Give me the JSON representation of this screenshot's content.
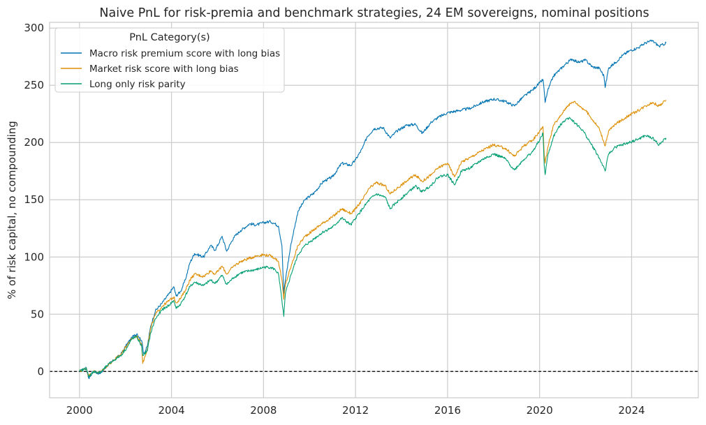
{
  "chart_data": {
    "type": "line",
    "title": "Naive PnL for risk-premia and benchmark strategies, 24 EM sovereigns, nominal positions",
    "xlabel": "",
    "ylabel": "% of risk capital, no compounding",
    "xlim": [
      1998.7,
      2026.9
    ],
    "ylim": [
      -23,
      305
    ],
    "x_ticks": [
      2000,
      2004,
      2008,
      2012,
      2016,
      2020,
      2024
    ],
    "y_ticks": [
      0,
      50,
      100,
      150,
      200,
      250,
      300
    ],
    "grid": true,
    "reference_line": {
      "y": 0,
      "style": "dashed",
      "color": "#000000"
    },
    "legend": {
      "title": "PnL Category(s)",
      "placement": "top-left"
    },
    "series": [
      {
        "name": "Macro risk premium score with long bias",
        "color": "#0173b2",
        "points": [
          [
            2000.0,
            0
          ],
          [
            2000.3,
            3
          ],
          [
            2000.4,
            -6
          ],
          [
            2000.6,
            0
          ],
          [
            2000.9,
            -2
          ],
          [
            2001.2,
            5
          ],
          [
            2001.5,
            10
          ],
          [
            2001.8,
            15
          ],
          [
            2002.1,
            25
          ],
          [
            2002.3,
            30
          ],
          [
            2002.5,
            33
          ],
          [
            2002.7,
            27
          ],
          [
            2002.8,
            15
          ],
          [
            2002.95,
            22
          ],
          [
            2003.1,
            40
          ],
          [
            2003.3,
            53
          ],
          [
            2003.6,
            60
          ],
          [
            2003.9,
            68
          ],
          [
            2004.1,
            74
          ],
          [
            2004.2,
            66
          ],
          [
            2004.4,
            70
          ],
          [
            2004.6,
            80
          ],
          [
            2004.8,
            95
          ],
          [
            2005.0,
            103
          ],
          [
            2005.4,
            100
          ],
          [
            2005.7,
            110
          ],
          [
            2005.9,
            106
          ],
          [
            2006.2,
            118
          ],
          [
            2006.4,
            105
          ],
          [
            2006.7,
            117
          ],
          [
            2007.0,
            123
          ],
          [
            2007.4,
            129
          ],
          [
            2007.7,
            128
          ],
          [
            2008.0,
            130
          ],
          [
            2008.3,
            131
          ],
          [
            2008.5,
            129
          ],
          [
            2008.65,
            127
          ],
          [
            2008.8,
            110
          ],
          [
            2008.88,
            68
          ],
          [
            2008.95,
            80
          ],
          [
            2009.2,
            112
          ],
          [
            2009.5,
            140
          ],
          [
            2009.8,
            150
          ],
          [
            2010.2,
            156
          ],
          [
            2010.6,
            166
          ],
          [
            2011.0,
            170
          ],
          [
            2011.4,
            182
          ],
          [
            2011.8,
            180
          ],
          [
            2012.0,
            185
          ],
          [
            2012.3,
            195
          ],
          [
            2012.5,
            205
          ],
          [
            2012.8,
            212
          ],
          [
            2013.2,
            213
          ],
          [
            2013.5,
            204
          ],
          [
            2013.8,
            210
          ],
          [
            2014.2,
            215
          ],
          [
            2014.6,
            216
          ],
          [
            2014.9,
            208
          ],
          [
            2015.3,
            218
          ],
          [
            2015.6,
            222
          ],
          [
            2016.0,
            226
          ],
          [
            2016.5,
            228
          ],
          [
            2017.0,
            230
          ],
          [
            2017.5,
            235
          ],
          [
            2018.0,
            238
          ],
          [
            2018.5,
            236
          ],
          [
            2018.9,
            232
          ],
          [
            2019.3,
            240
          ],
          [
            2019.7,
            246
          ],
          [
            2020.0,
            252
          ],
          [
            2020.15,
            255
          ],
          [
            2020.2,
            245
          ],
          [
            2020.24,
            235
          ],
          [
            2020.35,
            245
          ],
          [
            2020.6,
            258
          ],
          [
            2020.8,
            262
          ],
          [
            2021.1,
            268
          ],
          [
            2021.4,
            273
          ],
          [
            2021.7,
            270
          ],
          [
            2022.0,
            272
          ],
          [
            2022.3,
            266
          ],
          [
            2022.6,
            265
          ],
          [
            2022.8,
            258
          ],
          [
            2022.85,
            248
          ],
          [
            2023.0,
            265
          ],
          [
            2023.3,
            270
          ],
          [
            2023.6,
            276
          ],
          [
            2023.9,
            280
          ],
          [
            2024.3,
            283
          ],
          [
            2024.6,
            287
          ],
          [
            2024.9,
            289
          ],
          [
            2025.2,
            284
          ],
          [
            2025.5,
            287
          ]
        ]
      },
      {
        "name": "Market risk score with long bias",
        "color": "#de8f05",
        "points": [
          [
            2000.0,
            0
          ],
          [
            2000.3,
            3
          ],
          [
            2000.4,
            -4
          ],
          [
            2000.6,
            0
          ],
          [
            2000.9,
            -1
          ],
          [
            2001.2,
            5
          ],
          [
            2001.5,
            10
          ],
          [
            2001.8,
            15
          ],
          [
            2002.1,
            24
          ],
          [
            2002.3,
            29
          ],
          [
            2002.5,
            31
          ],
          [
            2002.7,
            24
          ],
          [
            2002.75,
            7
          ],
          [
            2002.95,
            20
          ],
          [
            2003.1,
            38
          ],
          [
            2003.3,
            50
          ],
          [
            2003.6,
            57
          ],
          [
            2003.9,
            62
          ],
          [
            2004.1,
            65
          ],
          [
            2004.2,
            60
          ],
          [
            2004.4,
            64
          ],
          [
            2004.6,
            71
          ],
          [
            2004.8,
            80
          ],
          [
            2005.0,
            85
          ],
          [
            2005.4,
            83
          ],
          [
            2005.7,
            88
          ],
          [
            2005.9,
            85
          ],
          [
            2006.2,
            92
          ],
          [
            2006.4,
            85
          ],
          [
            2006.7,
            92
          ],
          [
            2007.0,
            96
          ],
          [
            2007.4,
            99
          ],
          [
            2007.7,
            101
          ],
          [
            2008.0,
            102
          ],
          [
            2008.3,
            101
          ],
          [
            2008.5,
            99
          ],
          [
            2008.65,
            96
          ],
          [
            2008.8,
            80
          ],
          [
            2008.88,
            63
          ],
          [
            2008.95,
            76
          ],
          [
            2009.2,
            92
          ],
          [
            2009.5,
            110
          ],
          [
            2009.8,
            118
          ],
          [
            2010.2,
            124
          ],
          [
            2010.6,
            130
          ],
          [
            2011.0,
            135
          ],
          [
            2011.4,
            142
          ],
          [
            2011.8,
            138
          ],
          [
            2012.0,
            142
          ],
          [
            2012.3,
            150
          ],
          [
            2012.6,
            160
          ],
          [
            2012.9,
            165
          ],
          [
            2013.3,
            162
          ],
          [
            2013.5,
            155
          ],
          [
            2013.8,
            160
          ],
          [
            2014.2,
            166
          ],
          [
            2014.6,
            172
          ],
          [
            2014.9,
            166
          ],
          [
            2015.3,
            172
          ],
          [
            2015.6,
            178
          ],
          [
            2016.0,
            182
          ],
          [
            2016.3,
            170
          ],
          [
            2016.6,
            183
          ],
          [
            2017.0,
            187
          ],
          [
            2017.5,
            193
          ],
          [
            2018.0,
            198
          ],
          [
            2018.5,
            195
          ],
          [
            2018.9,
            188
          ],
          [
            2019.3,
            197
          ],
          [
            2019.7,
            202
          ],
          [
            2020.0,
            210
          ],
          [
            2020.15,
            214
          ],
          [
            2020.2,
            190
          ],
          [
            2020.24,
            182
          ],
          [
            2020.35,
            195
          ],
          [
            2020.6,
            215
          ],
          [
            2020.8,
            220
          ],
          [
            2021.0,
            226
          ],
          [
            2021.2,
            232
          ],
          [
            2021.5,
            236
          ],
          [
            2021.8,
            231
          ],
          [
            2022.0,
            228
          ],
          [
            2022.3,
            220
          ],
          [
            2022.6,
            212
          ],
          [
            2022.8,
            200
          ],
          [
            2022.85,
            197
          ],
          [
            2023.0,
            210
          ],
          [
            2023.3,
            216
          ],
          [
            2023.6,
            220
          ],
          [
            2023.9,
            224
          ],
          [
            2024.3,
            228
          ],
          [
            2024.6,
            232
          ],
          [
            2024.9,
            235
          ],
          [
            2025.2,
            232
          ],
          [
            2025.5,
            237
          ]
        ]
      },
      {
        "name": "Long only risk parity",
        "color": "#029e73",
        "points": [
          [
            2000.0,
            0
          ],
          [
            2000.3,
            3
          ],
          [
            2000.4,
            -5
          ],
          [
            2000.6,
            0
          ],
          [
            2000.9,
            -1
          ],
          [
            2001.2,
            5
          ],
          [
            2001.5,
            10
          ],
          [
            2001.8,
            14
          ],
          [
            2002.1,
            22
          ],
          [
            2002.3,
            29
          ],
          [
            2002.5,
            30
          ],
          [
            2002.7,
            22
          ],
          [
            2002.75,
            14
          ],
          [
            2002.95,
            18
          ],
          [
            2003.1,
            34
          ],
          [
            2003.3,
            46
          ],
          [
            2003.6,
            54
          ],
          [
            2003.9,
            58
          ],
          [
            2004.1,
            62
          ],
          [
            2004.2,
            55
          ],
          [
            2004.4,
            59
          ],
          [
            2004.6,
            66
          ],
          [
            2004.8,
            74
          ],
          [
            2005.0,
            78
          ],
          [
            2005.4,
            75
          ],
          [
            2005.7,
            80
          ],
          [
            2005.9,
            77
          ],
          [
            2006.2,
            84
          ],
          [
            2006.4,
            76
          ],
          [
            2006.7,
            82
          ],
          [
            2007.0,
            86
          ],
          [
            2007.4,
            88
          ],
          [
            2007.7,
            89
          ],
          [
            2008.0,
            91
          ],
          [
            2008.3,
            91
          ],
          [
            2008.5,
            89
          ],
          [
            2008.65,
            85
          ],
          [
            2008.8,
            62
          ],
          [
            2008.88,
            48
          ],
          [
            2008.95,
            68
          ],
          [
            2009.2,
            85
          ],
          [
            2009.5,
            102
          ],
          [
            2009.8,
            110
          ],
          [
            2010.2,
            116
          ],
          [
            2010.6,
            122
          ],
          [
            2011.0,
            126
          ],
          [
            2011.4,
            134
          ],
          [
            2011.8,
            128
          ],
          [
            2012.0,
            134
          ],
          [
            2012.3,
            142
          ],
          [
            2012.6,
            150
          ],
          [
            2012.9,
            155
          ],
          [
            2013.3,
            152
          ],
          [
            2013.5,
            142
          ],
          [
            2013.8,
            148
          ],
          [
            2014.2,
            155
          ],
          [
            2014.6,
            162
          ],
          [
            2014.9,
            157
          ],
          [
            2015.3,
            163
          ],
          [
            2015.6,
            170
          ],
          [
            2016.0,
            172
          ],
          [
            2016.3,
            163
          ],
          [
            2016.6,
            175
          ],
          [
            2017.0,
            178
          ],
          [
            2017.5,
            185
          ],
          [
            2018.0,
            190
          ],
          [
            2018.5,
            186
          ],
          [
            2018.9,
            176
          ],
          [
            2019.3,
            185
          ],
          [
            2019.7,
            192
          ],
          [
            2020.0,
            202
          ],
          [
            2020.15,
            208
          ],
          [
            2020.2,
            180
          ],
          [
            2020.24,
            172
          ],
          [
            2020.35,
            188
          ],
          [
            2020.6,
            205
          ],
          [
            2020.8,
            212
          ],
          [
            2021.0,
            218
          ],
          [
            2021.3,
            222
          ],
          [
            2021.6,
            216
          ],
          [
            2021.9,
            210
          ],
          [
            2022.2,
            200
          ],
          [
            2022.5,
            190
          ],
          [
            2022.8,
            178
          ],
          [
            2022.85,
            175
          ],
          [
            2023.0,
            190
          ],
          [
            2023.3,
            196
          ],
          [
            2023.6,
            198
          ],
          [
            2023.9,
            200
          ],
          [
            2024.3,
            203
          ],
          [
            2024.6,
            206
          ],
          [
            2024.9,
            204
          ],
          [
            2025.2,
            198
          ],
          [
            2025.5,
            204
          ]
        ]
      }
    ]
  }
}
